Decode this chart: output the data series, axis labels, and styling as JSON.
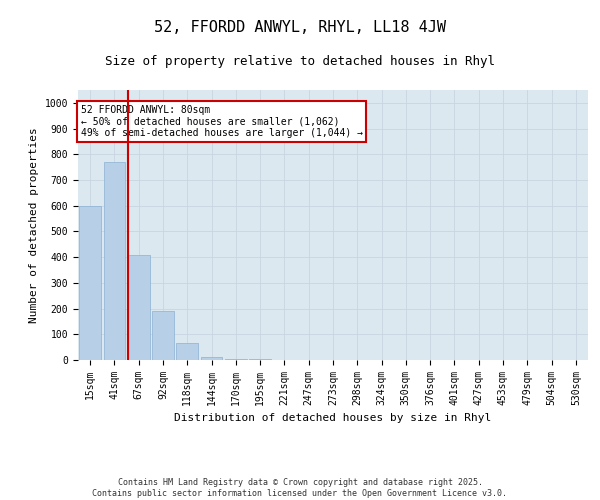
{
  "title": "52, FFORDD ANWYL, RHYL, LL18 4JW",
  "subtitle": "Size of property relative to detached houses in Rhyl",
  "xlabel": "Distribution of detached houses by size in Rhyl",
  "ylabel": "Number of detached properties",
  "categories": [
    "15sqm",
    "41sqm",
    "67sqm",
    "92sqm",
    "118sqm",
    "144sqm",
    "170sqm",
    "195sqm",
    "221sqm",
    "247sqm",
    "273sqm",
    "298sqm",
    "324sqm",
    "350sqm",
    "376sqm",
    "401sqm",
    "427sqm",
    "453sqm",
    "479sqm",
    "504sqm",
    "530sqm"
  ],
  "bar_values": [
    600,
    770,
    410,
    190,
    65,
    12,
    5,
    2,
    0,
    0,
    0,
    0,
    0,
    0,
    0,
    0,
    0,
    0,
    0,
    0,
    0
  ],
  "bar_color": "#b8cfe8",
  "bar_edgecolor": "#8ab0d4",
  "grid_color": "#c8d4e0",
  "bg_color": "#dce8f0",
  "vline_color": "#cc0000",
  "vline_x_index": 2,
  "annotation_text": "52 FFORDD ANWYL: 80sqm\n← 50% of detached houses are smaller (1,062)\n49% of semi-detached houses are larger (1,044) →",
  "annotation_box_facecolor": "#ffffff",
  "annotation_box_edgecolor": "#cc0000",
  "ylim": [
    0,
    1050
  ],
  "yticks": [
    0,
    100,
    200,
    300,
    400,
    500,
    600,
    700,
    800,
    900,
    1000
  ],
  "footer_text": "Contains HM Land Registry data © Crown copyright and database right 2025.\nContains public sector information licensed under the Open Government Licence v3.0.",
  "title_fontsize": 11,
  "subtitle_fontsize": 9,
  "axis_label_fontsize": 8,
  "tick_fontsize": 7,
  "annotation_fontsize": 7,
  "footer_fontsize": 6
}
